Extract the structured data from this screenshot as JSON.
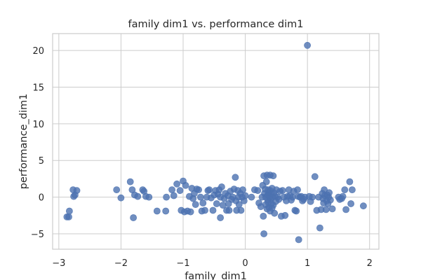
{
  "chart_data": {
    "type": "scatter",
    "title": "family dim1 vs. performance dim1",
    "xlabel": "family_dim1",
    "ylabel": "performance_dim1",
    "xlim": [
      -3.1,
      2.15
    ],
    "ylim": [
      -7.1,
      22.3
    ],
    "xticks": [
      -3,
      -2,
      -1,
      0,
      1,
      2
    ],
    "yticks": [
      -5,
      0,
      5,
      10,
      15,
      20
    ],
    "grid": true,
    "color": "#4c72b0",
    "points": [
      [
        -2.87,
        -2.7
      ],
      [
        -2.84,
        -2.7
      ],
      [
        -2.83,
        -1.9
      ],
      [
        -2.77,
        1.0
      ],
      [
        -2.76,
        0.1
      ],
      [
        -2.74,
        0.3
      ],
      [
        -2.71,
        0.9
      ],
      [
        -2.07,
        1.0
      ],
      [
        -2.0,
        -0.1
      ],
      [
        -1.85,
        2.1
      ],
      [
        -1.82,
        1.0
      ],
      [
        -1.8,
        -2.8
      ],
      [
        -1.78,
        0.3
      ],
      [
        -1.73,
        0.1
      ],
      [
        -1.65,
        1.0
      ],
      [
        -1.63,
        0.8
      ],
      [
        -1.6,
        0.1
      ],
      [
        -1.55,
        0.0
      ],
      [
        -1.42,
        -1.9
      ],
      [
        -1.28,
        -1.9
      ],
      [
        -1.27,
        0.0
      ],
      [
        -1.18,
        1.0
      ],
      [
        -1.15,
        0.2
      ],
      [
        -1.1,
        1.8
      ],
      [
        -1.05,
        0.9
      ],
      [
        -1.03,
        -1.8
      ],
      [
        -1.0,
        2.2
      ],
      [
        -0.98,
        -2.0
      ],
      [
        -0.96,
        1.6
      ],
      [
        -0.93,
        -1.9
      ],
      [
        -0.9,
        0.1
      ],
      [
        -0.88,
        -2.0
      ],
      [
        -0.86,
        1.2
      ],
      [
        -0.84,
        -0.2
      ],
      [
        -0.82,
        0.5
      ],
      [
        -0.8,
        -1.0
      ],
      [
        -0.78,
        1.1
      ],
      [
        -0.75,
        1.0
      ],
      [
        -0.72,
        0.0
      ],
      [
        -0.7,
        -1.9
      ],
      [
        -0.68,
        -0.8
      ],
      [
        -0.65,
        -1.8
      ],
      [
        -0.62,
        0.0
      ],
      [
        -0.6,
        0.9
      ],
      [
        -0.58,
        1.0
      ],
      [
        -0.55,
        -0.1
      ],
      [
        -0.52,
        -1.8
      ],
      [
        -0.5,
        0.3
      ],
      [
        -0.48,
        0.9
      ],
      [
        -0.46,
        -0.9
      ],
      [
        -0.44,
        0.4
      ],
      [
        -0.42,
        1.0
      ],
      [
        -0.4,
        -2.8
      ],
      [
        -0.4,
        0.0
      ],
      [
        -0.38,
        1.4
      ],
      [
        -0.36,
        -1.1
      ],
      [
        -0.34,
        -0.2
      ],
      [
        -0.32,
        0.5
      ],
      [
        -0.3,
        -1.8
      ],
      [
        -0.28,
        0.2
      ],
      [
        -0.27,
        -0.9
      ],
      [
        -0.26,
        -1.8
      ],
      [
        -0.24,
        0.8
      ],
      [
        -0.22,
        -0.3
      ],
      [
        -0.2,
        0.0
      ],
      [
        -0.18,
        1.1
      ],
      [
        -0.16,
        2.7
      ],
      [
        -0.15,
        -0.5
      ],
      [
        -0.14,
        -1.8
      ],
      [
        -0.12,
        0.9
      ],
      [
        -0.11,
        0.0
      ],
      [
        -0.1,
        -1.0
      ],
      [
        -0.08,
        0.5
      ],
      [
        -0.07,
        -1.8
      ],
      [
        -0.05,
        0.0
      ],
      [
        -0.04,
        1.0
      ],
      [
        -0.02,
        -0.5
      ],
      [
        0.0,
        0.2
      ],
      [
        0.1,
        0.0
      ],
      [
        0.15,
        1.0
      ],
      [
        0.2,
        0.9
      ],
      [
        0.22,
        -0.8
      ],
      [
        0.25,
        -1.3
      ],
      [
        0.27,
        0.0
      ],
      [
        0.28,
        1.6
      ],
      [
        0.29,
        -2.6
      ],
      [
        0.3,
        2.9
      ],
      [
        0.3,
        -5.0
      ],
      [
        0.31,
        0.5
      ],
      [
        0.32,
        1.1
      ],
      [
        0.33,
        0.0
      ],
      [
        0.33,
        -1.0
      ],
      [
        0.34,
        2.1
      ],
      [
        0.35,
        3.0
      ],
      [
        0.35,
        -1.6
      ],
      [
        0.36,
        0.3
      ],
      [
        0.36,
        -0.4
      ],
      [
        0.37,
        1.0
      ],
      [
        0.37,
        -0.7
      ],
      [
        0.38,
        0.6
      ],
      [
        0.38,
        -1.4
      ],
      [
        0.39,
        0.0
      ],
      [
        0.4,
        3.0
      ],
      [
        0.4,
        0.9
      ],
      [
        0.4,
        -1.9
      ],
      [
        0.41,
        -0.3
      ],
      [
        0.42,
        0.4
      ],
      [
        0.42,
        -0.9
      ],
      [
        0.43,
        1.2
      ],
      [
        0.43,
        -1.5
      ],
      [
        0.44,
        0.0
      ],
      [
        0.45,
        -1.1
      ],
      [
        0.45,
        2.9
      ],
      [
        0.46,
        0.6
      ],
      [
        0.47,
        -2.2
      ],
      [
        0.48,
        0.1
      ],
      [
        0.49,
        -0.6
      ],
      [
        0.5,
        1.0
      ],
      [
        0.52,
        0.0
      ],
      [
        0.54,
        -0.3
      ],
      [
        0.56,
        0.8
      ],
      [
        0.58,
        -2.6
      ],
      [
        0.6,
        0.9
      ],
      [
        0.62,
        0.0
      ],
      [
        0.64,
        -2.5
      ],
      [
        0.66,
        -0.5
      ],
      [
        0.68,
        0.1
      ],
      [
        0.7,
        1.0
      ],
      [
        0.72,
        0.2
      ],
      [
        0.74,
        -0.4
      ],
      [
        0.76,
        0.0
      ],
      [
        0.78,
        0.8
      ],
      [
        0.8,
        -1.8
      ],
      [
        0.82,
        -1.9
      ],
      [
        0.84,
        1.0
      ],
      [
        0.85,
        0.1
      ],
      [
        0.86,
        -5.8
      ],
      [
        0.88,
        0.0
      ],
      [
        0.9,
        0.1
      ],
      [
        0.92,
        -0.5
      ],
      [
        0.94,
        -0.3
      ],
      [
        0.96,
        0.0
      ],
      [
        1.0,
        20.7
      ],
      [
        1.03,
        0.1
      ],
      [
        1.05,
        -0.6
      ],
      [
        1.08,
        0.0
      ],
      [
        1.12,
        2.8
      ],
      [
        1.15,
        -1.8
      ],
      [
        1.18,
        0.0
      ],
      [
        1.2,
        -4.2
      ],
      [
        1.22,
        -1.7
      ],
      [
        1.24,
        0.5
      ],
      [
        1.25,
        -0.2
      ],
      [
        1.26,
        -0.8
      ],
      [
        1.27,
        1.0
      ],
      [
        1.28,
        0.2
      ],
      [
        1.3,
        -1.7
      ],
      [
        1.31,
        -0.5
      ],
      [
        1.32,
        0.3
      ],
      [
        1.33,
        -0.9
      ],
      [
        1.34,
        0.0
      ],
      [
        1.35,
        0.6
      ],
      [
        1.37,
        -0.4
      ],
      [
        1.4,
        -1.6
      ],
      [
        1.5,
        0.0
      ],
      [
        1.52,
        -0.3
      ],
      [
        1.55,
        -0.2
      ],
      [
        1.57,
        0.1
      ],
      [
        1.6,
        1.0
      ],
      [
        1.62,
        -1.7
      ],
      [
        1.68,
        2.1
      ],
      [
        1.7,
        -0.9
      ],
      [
        1.72,
        1.0
      ],
      [
        1.9,
        -1.2
      ]
    ]
  }
}
